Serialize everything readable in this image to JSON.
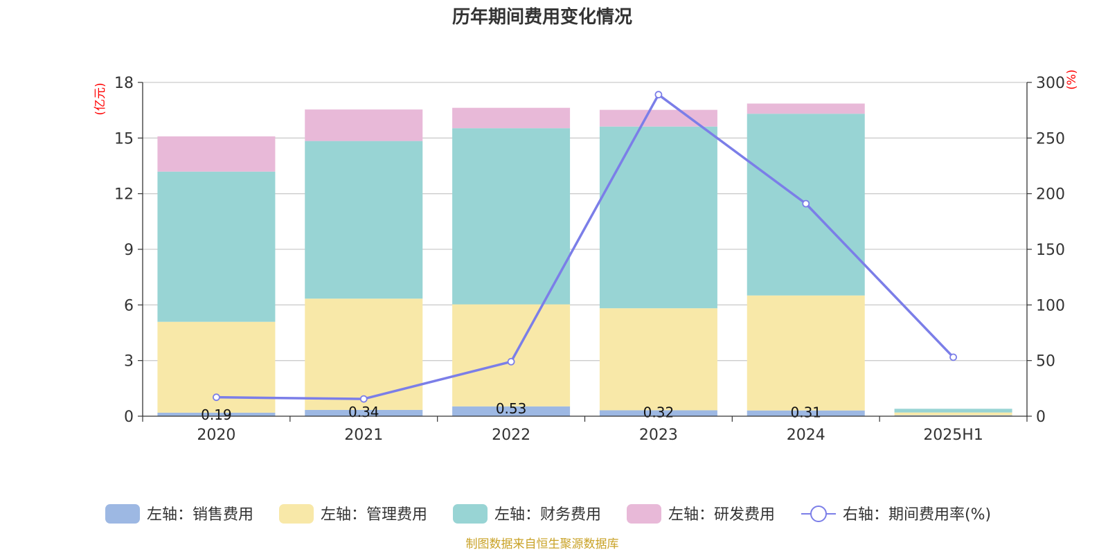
{
  "chart_data": {
    "type": "bar",
    "title": "历年期间费用变化情况",
    "categories": [
      "2020",
      "2021",
      "2022",
      "2023",
      "2024",
      "2025H1"
    ],
    "left_axis": {
      "unit": "(亿元)",
      "ylim": [
        0,
        18
      ],
      "ticks": [
        0,
        3,
        6,
        9,
        12,
        15,
        18
      ]
    },
    "right_axis": {
      "unit": "(%)",
      "ylim": [
        0,
        300
      ],
      "ticks": [
        0,
        50,
        100,
        150,
        200,
        250,
        300
      ]
    },
    "grid": true,
    "legend_position": "bottom",
    "series": [
      {
        "name": "左轴：销售费用",
        "axis": "left",
        "type": "bar",
        "color": "#9db8e3",
        "values": [
          0.19,
          0.34,
          0.53,
          0.32,
          0.31,
          0.05
        ],
        "labels": [
          "0.19",
          "0.34",
          "0.53",
          "0.32",
          "0.31",
          ""
        ]
      },
      {
        "name": "左轴：管理费用",
        "axis": "left",
        "type": "bar",
        "color": "#f8e8a8",
        "values": [
          4.9,
          6.0,
          5.5,
          5.5,
          6.2,
          0.15
        ]
      },
      {
        "name": "左轴：财务费用",
        "axis": "left",
        "type": "bar",
        "color": "#98d4d4",
        "values": [
          8.1,
          8.5,
          9.5,
          9.8,
          9.8,
          0.2
        ]
      },
      {
        "name": "左轴：研发费用",
        "axis": "left",
        "type": "bar",
        "color": "#e8b9d8",
        "values": [
          1.9,
          1.7,
          1.1,
          0.9,
          0.55,
          0.0
        ]
      },
      {
        "name": "右轴：期间费用率(%)",
        "axis": "right",
        "type": "line",
        "color": "#7b7ee8",
        "values": [
          17,
          15.5,
          49,
          289,
          191,
          53
        ]
      }
    ]
  },
  "source": "制图数据来自恒生聚源数据库"
}
